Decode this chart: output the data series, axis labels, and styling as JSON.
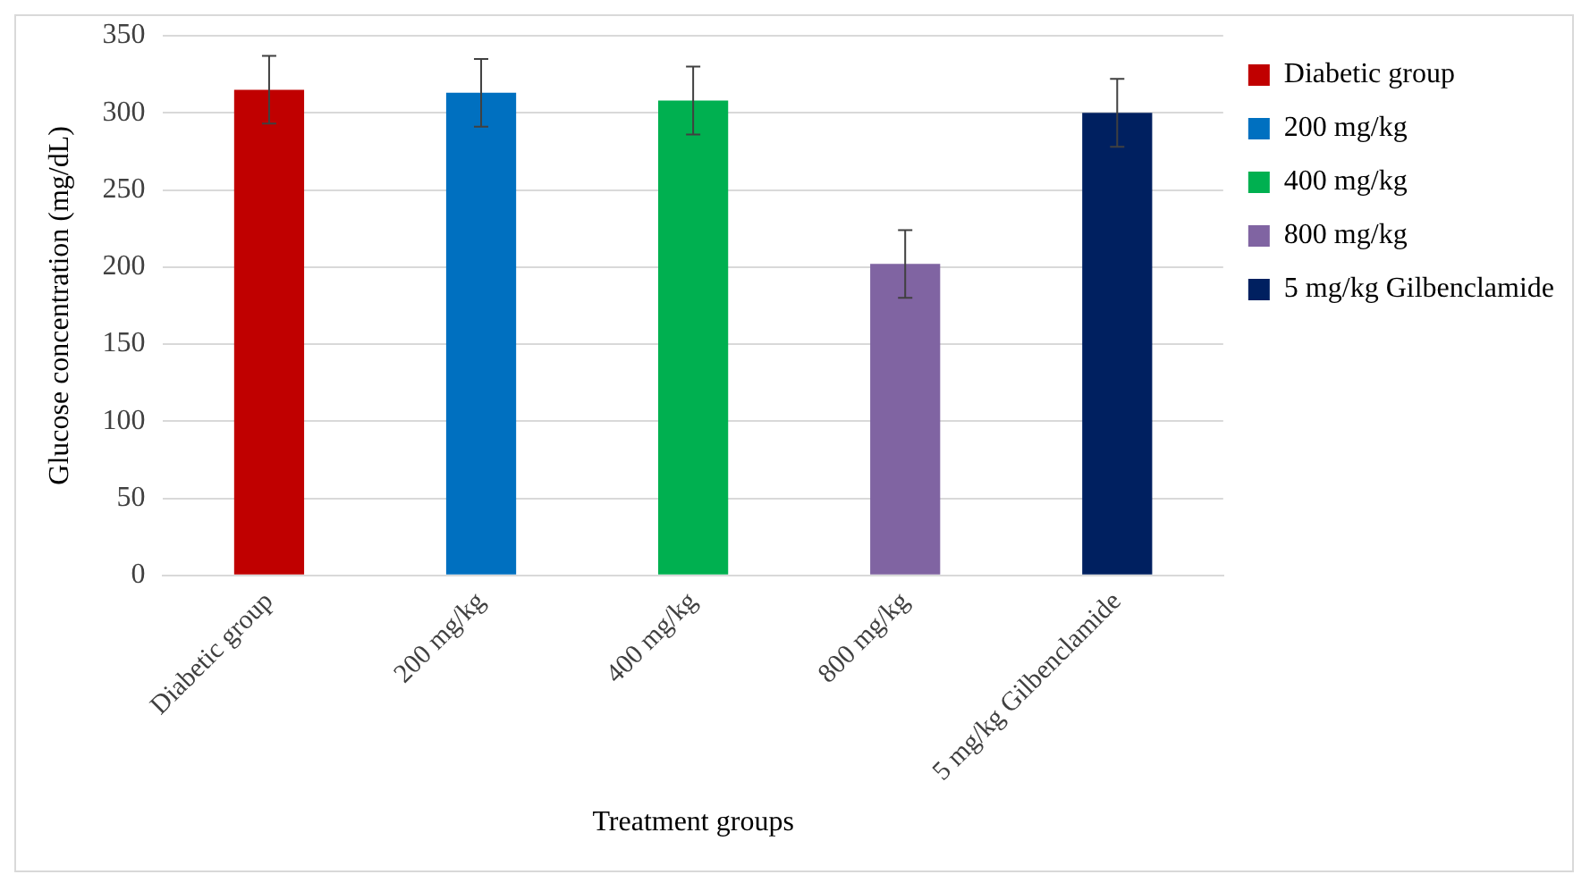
{
  "chart_data": {
    "type": "bar",
    "xlabel": "Treatment groups",
    "ylabel": "Glucose concentration (mg/dL)",
    "categories": [
      "Diabetic group",
      "200 mg/kg",
      "400 mg/kg",
      "800 mg/kg",
      "5 mg/kg Gilbenclamide"
    ],
    "series": [
      {
        "name": "Diabetic group",
        "color": "#c00000",
        "values": [
          315,
          null,
          null,
          null,
          null
        ],
        "errors": [
          22,
          null,
          null,
          null,
          null
        ]
      },
      {
        "name": "200 mg/kg",
        "color": "#0070c0",
        "values": [
          null,
          313,
          null,
          null,
          null
        ],
        "errors": [
          null,
          22,
          null,
          null,
          null
        ]
      },
      {
        "name": "400 mg/kg",
        "color": "#00b050",
        "values": [
          null,
          null,
          308,
          null,
          null
        ],
        "errors": [
          null,
          null,
          22,
          null,
          null
        ]
      },
      {
        "name": "800 mg/kg",
        "color": "#8064a2",
        "values": [
          null,
          null,
          null,
          202,
          null
        ],
        "errors": [
          null,
          null,
          null,
          22,
          null
        ]
      },
      {
        "name": "5 mg/kg Gilbenclamide",
        "color": "#002060",
        "values": [
          null,
          null,
          null,
          null,
          300
        ],
        "errors": [
          null,
          null,
          null,
          null,
          22
        ]
      }
    ],
    "ylim": [
      0,
      350
    ],
    "yticks": [
      0,
      50,
      100,
      150,
      200,
      250,
      300,
      350
    ],
    "grid": "y",
    "legend": "top right"
  }
}
